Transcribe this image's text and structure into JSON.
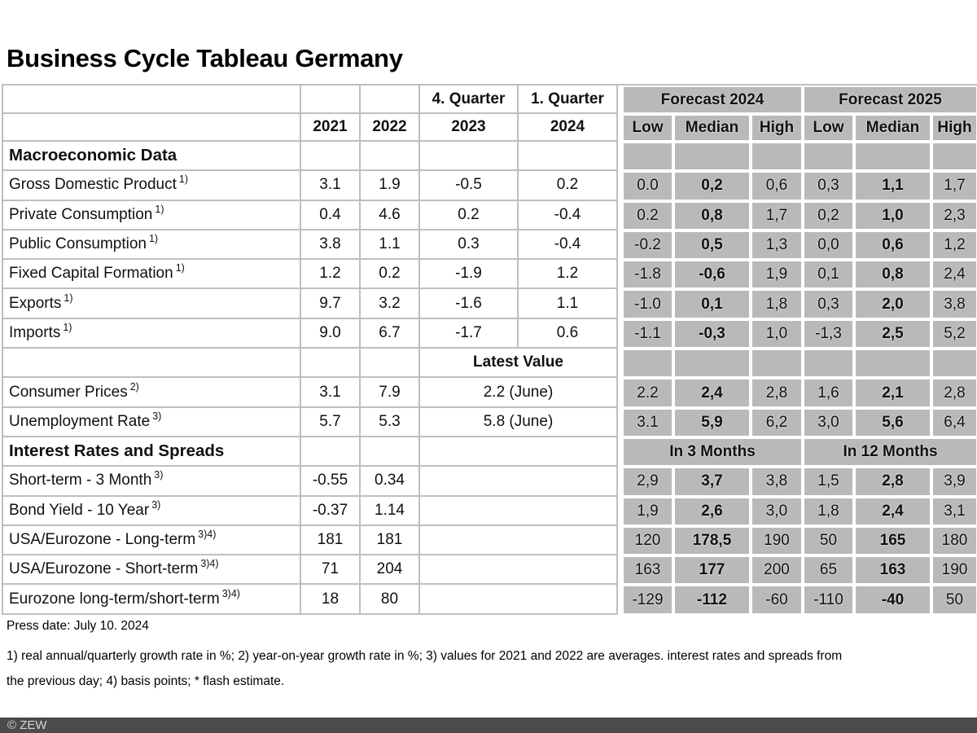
{
  "title": "Business Cycle Tableau Germany",
  "press_date": "Press date: July 10. 2024",
  "footnotes": [
    "1) real annual/quarterly growth rate in %; 2) year-on-year growth rate in %; 3) values for 2021 and 2022 are averages. interest rates and spreads from",
    "the previous day; 4) basis points; * flash estimate."
  ],
  "copyright": "© ZEW",
  "colors": {
    "forecast_cell_gray": "#b9b9b9",
    "grid_line": "#bfbfbf",
    "footer_bar": "#4b4b4b",
    "footer_text": "#d6d6d6"
  },
  "chart_data": {
    "type": "table",
    "title": "Business Cycle Tableau Germany",
    "header": {
      "year_cols": [
        "2021",
        "2022"
      ],
      "quarter_cols": [
        {
          "title": "4. Quarter",
          "year": "2023"
        },
        {
          "title": "1. Quarter",
          "year": "2024"
        }
      ],
      "forecast_groups": [
        "Forecast 2024",
        "Forecast 2025"
      ],
      "forecast_subcols": [
        "Low",
        "Median",
        "High"
      ]
    },
    "sections": [
      {
        "label": "Macroeconomic Data",
        "rows": [
          {
            "label": "Gross Domestic Product",
            "sup": "1)",
            "y2021": "3.1",
            "y2022": "1.9",
            "q4_2023": "-0.5",
            "q1_2024": "0.2",
            "f2024": [
              "0.0",
              "0,2",
              "0,6"
            ],
            "f2025": [
              "0,3",
              "1,1",
              "1,7"
            ]
          },
          {
            "label": "Private Consumption",
            "sup": "1)",
            "y2021": "0.4",
            "y2022": "4.6",
            "q4_2023": "0.2",
            "q1_2024": "-0.4",
            "f2024": [
              "0.2",
              "0,8",
              "1,7"
            ],
            "f2025": [
              "0,2",
              "1,0",
              "2,3"
            ]
          },
          {
            "label": "Public Consumption",
            "sup": "1)",
            "y2021": "3.8",
            "y2022": "1.1",
            "q4_2023": "0.3",
            "q1_2024": "-0.4",
            "f2024": [
              "-0.2",
              "0,5",
              "1,3"
            ],
            "f2025": [
              "0,0",
              "0,6",
              "1,2"
            ]
          },
          {
            "label": "Fixed Capital Formation",
            "sup": "1)",
            "y2021": "1.2",
            "y2022": "0.2",
            "q4_2023": "-1.9",
            "q1_2024": "1.2",
            "f2024": [
              "-1.8",
              "-0,6",
              "1,9"
            ],
            "f2025": [
              "0,1",
              "0,8",
              "2,4"
            ]
          },
          {
            "label": "Exports",
            "sup": "1)",
            "y2021": "9.7",
            "y2022": "3.2",
            "q4_2023": "-1.6",
            "q1_2024": "1.1",
            "f2024": [
              "-1.0",
              "0,1",
              "1,8"
            ],
            "f2025": [
              "0,3",
              "2,0",
              "3,8"
            ]
          },
          {
            "label": "Imports",
            "sup": "1)",
            "y2021": "9.0",
            "y2022": "6.7",
            "q4_2023": "-1.7",
            "q1_2024": "0.6",
            "f2024": [
              "-1.1",
              "-0,3",
              "1,0"
            ],
            "f2025": [
              "-1,3",
              "2,5",
              "5,2"
            ]
          }
        ]
      },
      {
        "subheader": "Latest Value",
        "rows": [
          {
            "label": "Consumer Prices",
            "sup": "2)",
            "y2021": "3.1",
            "y2022": "7.9",
            "latest": "2.2 (June)",
            "f2024": [
              "2.2",
              "2,4",
              "2,8"
            ],
            "f2025": [
              "1,6",
              "2,1",
              "2,8"
            ]
          },
          {
            "label": "Unemployment Rate",
            "sup": "3)",
            "y2021": "5.7",
            "y2022": "5.3",
            "latest": "5.8 (June)",
            "f2024": [
              "3.1",
              "5,9",
              "6,2"
            ],
            "f2025": [
              "3,0",
              "5,6",
              "6,4"
            ]
          }
        ]
      },
      {
        "label": "Interest Rates and Spreads",
        "group_labels": [
          "In 3 Months",
          "In 12 Months"
        ],
        "rows": [
          {
            "label": "Short-term - 3 Month",
            "sup": "3)",
            "y2021": "-0.55",
            "y2022": "0.34",
            "f2024": [
              "2,9",
              "3,7",
              "3,8"
            ],
            "f2025": [
              "1,5",
              "2,8",
              "3,9"
            ]
          },
          {
            "label": "Bond Yield - 10 Year",
            "sup": "3)",
            "y2021": "-0.37",
            "y2022": "1.14",
            "f2024": [
              "1,9",
              "2,6",
              "3,0"
            ],
            "f2025": [
              "1,8",
              "2,4",
              "3,1"
            ]
          },
          {
            "label": "USA/Eurozone - Long-term",
            "sup": "3)4)",
            "y2021": "181",
            "y2022": "181",
            "f2024": [
              "120",
              "178,5",
              "190"
            ],
            "f2025": [
              "50",
              "165",
              "180"
            ]
          },
          {
            "label": "USA/Eurozone - Short-term",
            "sup": "3)4)",
            "y2021": "71",
            "y2022": "204",
            "f2024": [
              "163",
              "177",
              "200"
            ],
            "f2025": [
              "65",
              "163",
              "190"
            ]
          },
          {
            "label": "Eurozone long-term/short-term",
            "sup": "3)4)",
            "y2021": "18",
            "y2022": "80",
            "f2024": [
              "-129",
              "-112",
              "-60"
            ],
            "f2025": [
              "-110",
              "-40",
              "50"
            ]
          }
        ]
      }
    ]
  }
}
